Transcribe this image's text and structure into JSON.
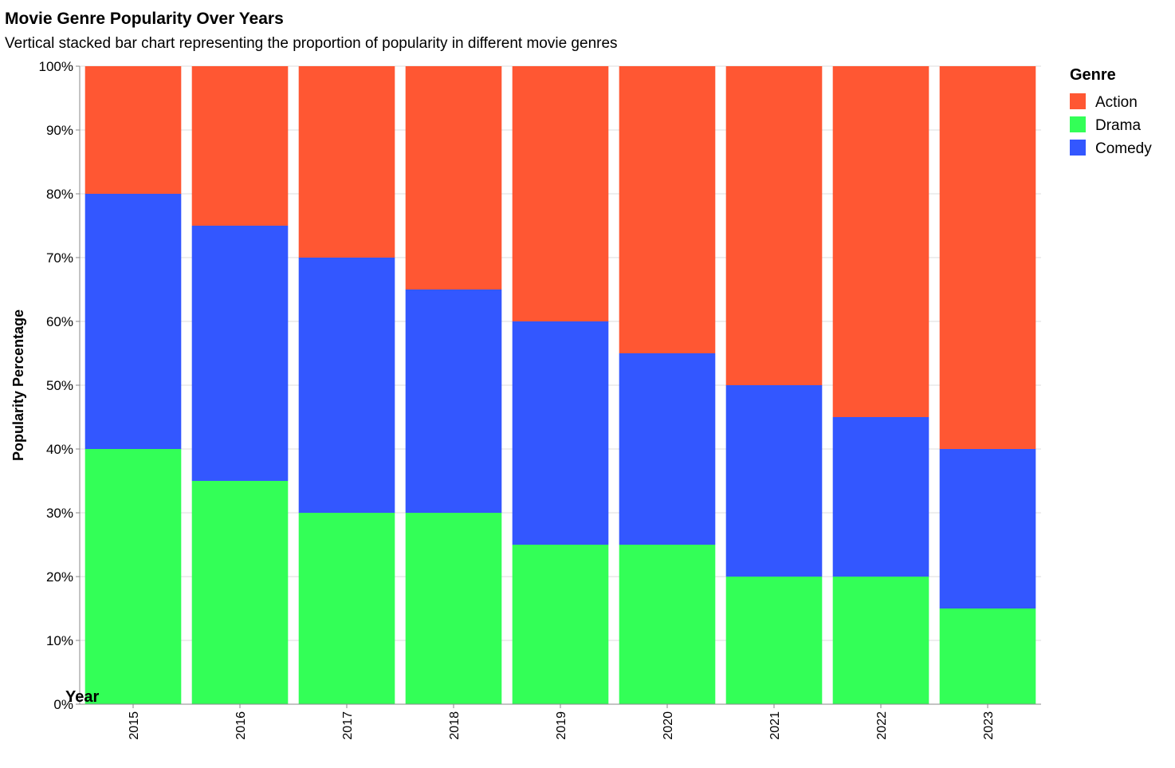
{
  "chart_data": {
    "type": "bar",
    "stacked": true,
    "normalized": true,
    "title": "Movie Genre Popularity Over Years",
    "subtitle": "Vertical stacked bar chart representing the proportion of popularity in different movie genres",
    "xlabel": "Year",
    "ylabel": "Popularity Percentage",
    "ylim": [
      0,
      100
    ],
    "yticks": [
      "0%",
      "10%",
      "20%",
      "30%",
      "40%",
      "50%",
      "60%",
      "70%",
      "80%",
      "90%",
      "100%"
    ],
    "grid": true,
    "legend": {
      "title": "Genre",
      "position": "right"
    },
    "categories": [
      "2015",
      "2016",
      "2017",
      "2018",
      "2019",
      "2020",
      "2021",
      "2022",
      "2023"
    ],
    "series": [
      {
        "name": "Drama",
        "color": "#33ff57",
        "values": [
          40,
          35,
          30,
          30,
          25,
          25,
          20,
          20,
          15
        ]
      },
      {
        "name": "Comedy",
        "color": "#3357ff",
        "values": [
          40,
          40,
          40,
          35,
          35,
          30,
          30,
          25,
          25
        ]
      },
      {
        "name": "Action",
        "color": "#ff5733",
        "values": [
          20,
          25,
          30,
          35,
          40,
          45,
          50,
          55,
          60
        ]
      }
    ],
    "legend_order": [
      "Action",
      "Drama",
      "Comedy"
    ]
  }
}
